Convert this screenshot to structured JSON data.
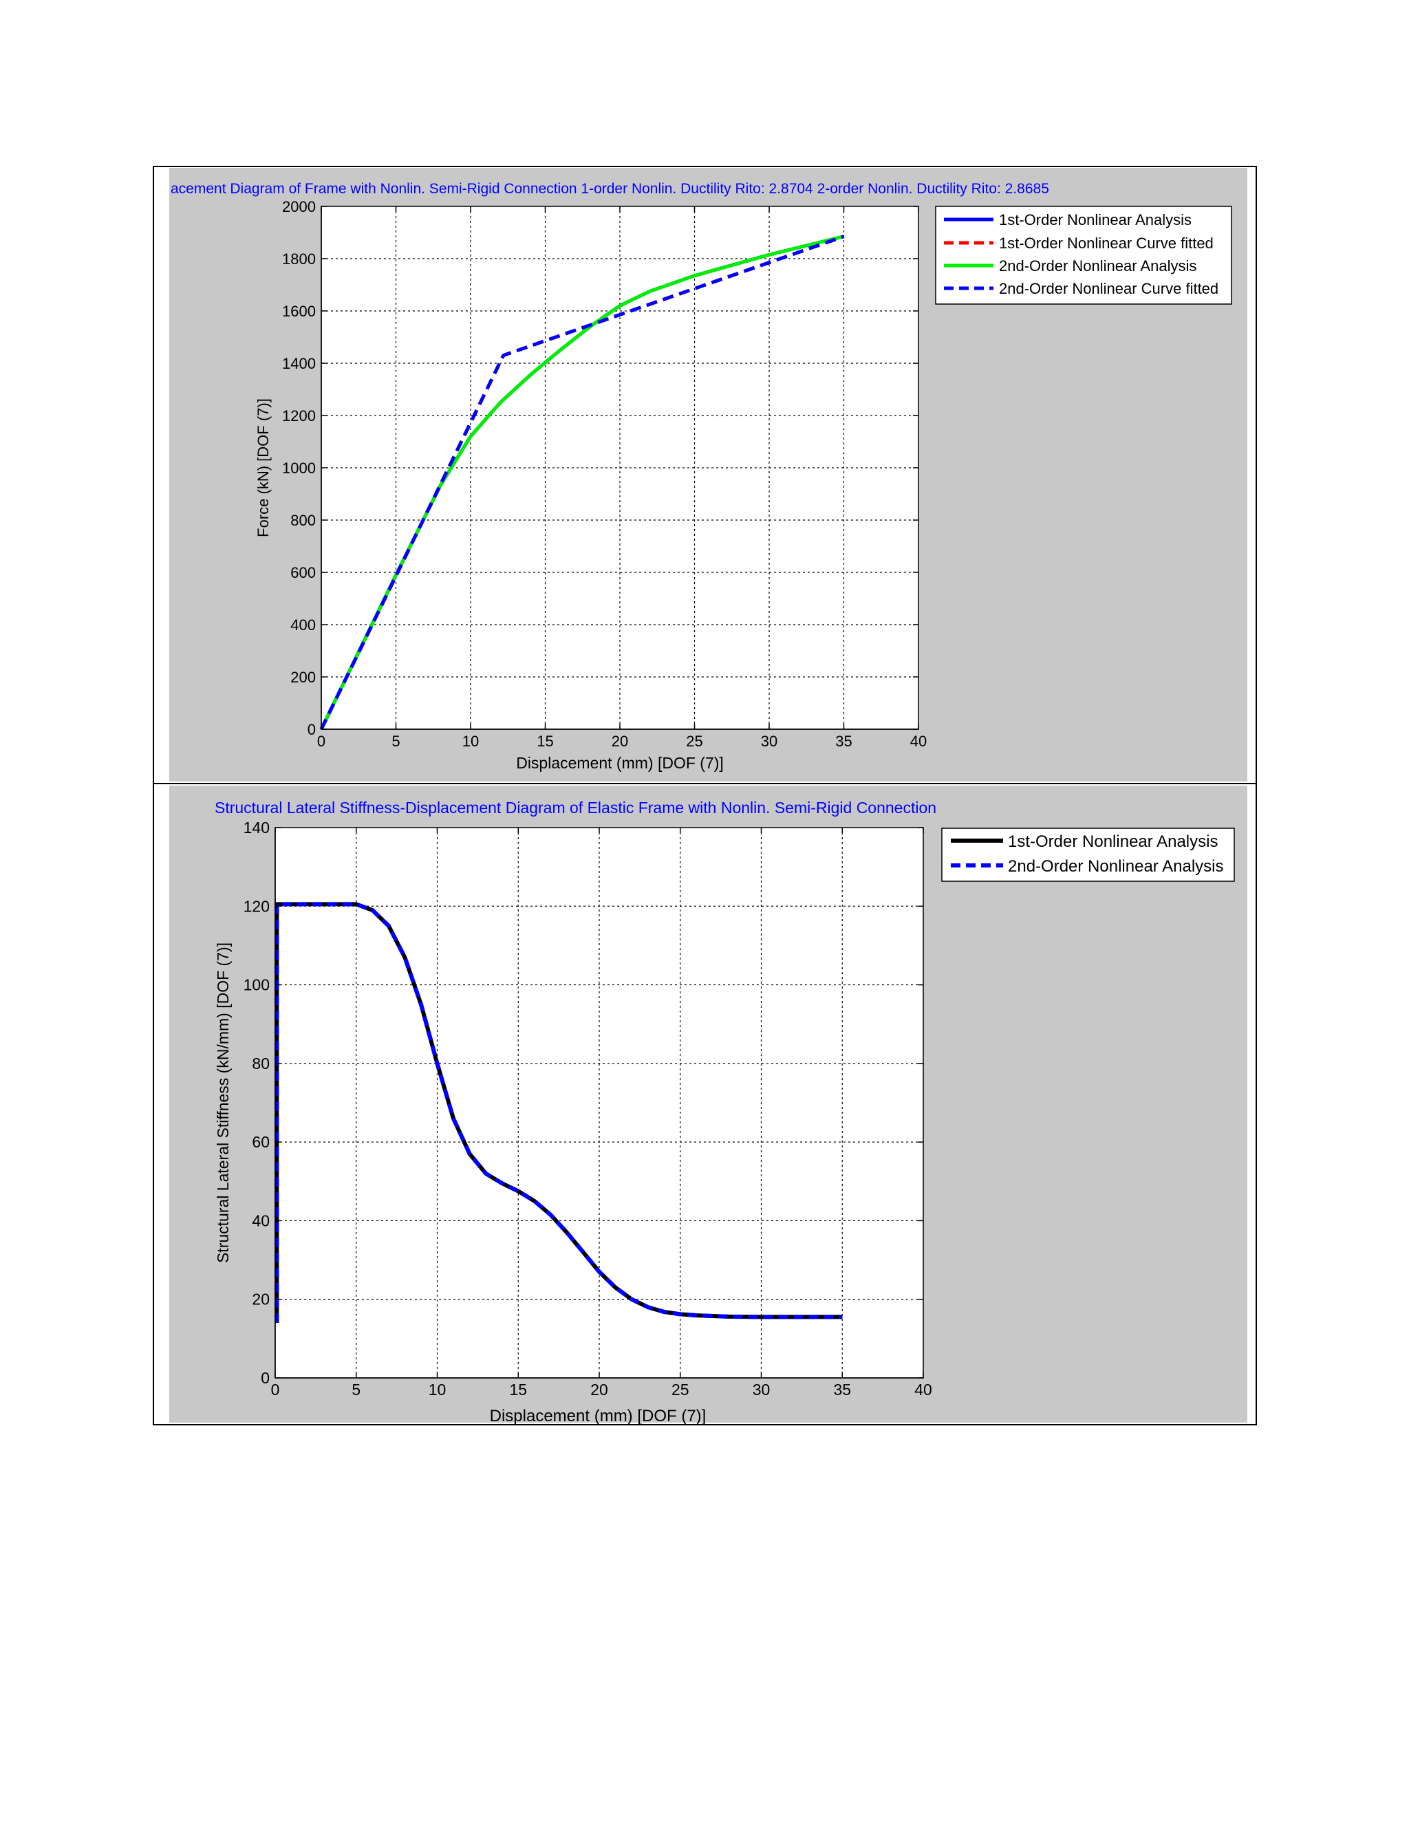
{
  "chart_data": [
    {
      "type": "line",
      "title": "acement Diagram of Frame with Nonlin. Semi-Rigid Connection 1-order Nonlin. Ductility Rito: 2.8704   2-order Nonlin. Ductility Rito: 2.8685",
      "xlabel": "Displacement (mm) [DOF (7)]",
      "ylabel": "Force (kN) [DOF (7)]",
      "xlim": [
        0,
        40
      ],
      "ylim": [
        0,
        2000
      ],
      "xticks": [
        "0",
        "5",
        "10",
        "15",
        "20",
        "25",
        "30",
        "35",
        "40"
      ],
      "yticks": [
        "0",
        "200",
        "400",
        "600",
        "800",
        "1000",
        "1200",
        "1400",
        "1600",
        "1800",
        "2000"
      ],
      "grid": true,
      "legend_position": "outside-right-top",
      "series": [
        {
          "name": "1st-Order Nonlinear Analysis",
          "color": "#0000ff",
          "dash": "solid",
          "x": [
            0,
            5,
            8,
            10,
            12,
            14,
            16,
            18,
            20,
            22,
            25,
            30,
            35
          ],
          "y": [
            0,
            590,
            935,
            1120,
            1250,
            1355,
            1450,
            1540,
            1620,
            1675,
            1735,
            1815,
            1885
          ]
        },
        {
          "name": "1st-Order Nonlinear Curve fitted",
          "color": "#ff0000",
          "dash": "dashed",
          "x": [
            0,
            12.2,
            35
          ],
          "y": [
            0,
            1430,
            1885
          ]
        },
        {
          "name": "2nd-Order Nonlinear Analysis",
          "color": "#00ee00",
          "dash": "solid",
          "x": [
            0,
            5,
            8,
            10,
            12,
            14,
            16,
            18,
            20,
            22,
            25,
            30,
            35
          ],
          "y": [
            0,
            590,
            935,
            1120,
            1250,
            1355,
            1450,
            1540,
            1620,
            1675,
            1735,
            1815,
            1885
          ]
        },
        {
          "name": "2nd-Order Nonlinear Curve fitted",
          "color": "#0000ff",
          "dash": "dashed",
          "x": [
            0,
            12.2,
            35
          ],
          "y": [
            0,
            1430,
            1885
          ]
        }
      ]
    },
    {
      "type": "line",
      "title": "Structural Lateral Stiffness-Displacement Diagram of Elastic Frame with Nonlin. Semi-Rigid Connection",
      "xlabel": "Displacement (mm) [DOF (7)]",
      "ylabel": "Structural Lateral Stiffness (kN/mm) [DOF (7)]",
      "xlim": [
        0,
        40
      ],
      "ylim": [
        0,
        140
      ],
      "xticks": [
        "0",
        "5",
        "10",
        "15",
        "20",
        "25",
        "30",
        "35",
        "40"
      ],
      "yticks": [
        "0",
        "20",
        "40",
        "60",
        "80",
        "100",
        "120",
        "140"
      ],
      "grid": true,
      "legend_position": "outside-right-top",
      "series": [
        {
          "name": "1st-Order Nonlinear Analysis",
          "color": "#000000",
          "dash": "solid",
          "x": [
            0.1,
            0.1,
            1,
            3,
            5,
            6,
            7,
            8,
            9,
            10,
            11,
            12,
            13,
            14,
            15,
            16,
            17,
            18,
            19,
            20,
            21,
            22,
            23,
            24,
            25,
            26,
            28,
            30,
            32,
            35
          ],
          "y": [
            14,
            120.5,
            120.5,
            120.5,
            120.5,
            119,
            115,
            107,
            95,
            80,
            66,
            57,
            52,
            49.5,
            47.5,
            45,
            41.5,
            37,
            32,
            27,
            23,
            20,
            18,
            16.8,
            16.2,
            15.9,
            15.6,
            15.5,
            15.5,
            15.5
          ]
        },
        {
          "name": "2nd-Order Nonlinear Analysis",
          "color": "#0000ff",
          "dash": "dashed",
          "x": [
            0.1,
            0.1,
            1,
            3,
            5,
            6,
            7,
            8,
            9,
            10,
            11,
            12,
            13,
            14,
            15,
            16,
            17,
            18,
            19,
            20,
            21,
            22,
            23,
            24,
            25,
            26,
            28,
            30,
            32,
            35
          ],
          "y": [
            14,
            120.5,
            120.5,
            120.5,
            120.5,
            119,
            115,
            107,
            95,
            80,
            66,
            57,
            52,
            49.5,
            47.5,
            45,
            41.5,
            37,
            32,
            27,
            23,
            20,
            18,
            16.8,
            16.2,
            15.9,
            15.6,
            15.5,
            15.5,
            15.5
          ]
        }
      ]
    }
  ]
}
